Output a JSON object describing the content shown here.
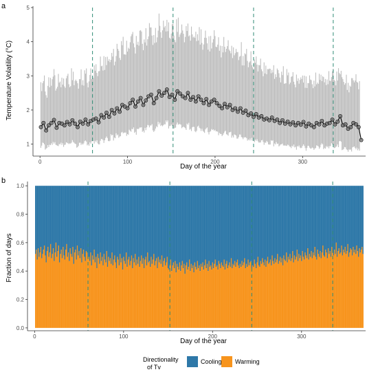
{
  "chart_data": [
    {
      "type": "line",
      "panel_tag": "a",
      "xlabel": "Day of the year",
      "ylabel": "Temperature Volatility (°C)",
      "xlim": [
        -8,
        372
      ],
      "ylim": [
        0.65,
        5.0
      ],
      "xticks": [
        0,
        100,
        200,
        300
      ],
      "yticks": [
        1,
        2,
        3,
        4,
        5
      ],
      "grid": false,
      "reference_lines_x": [
        60,
        152,
        244,
        335
      ],
      "colors": {
        "range": "#bdbdbd",
        "line": "#000000",
        "point_fill": "#7f7f7f",
        "reference": "#2e8b74"
      },
      "series": [
        {
          "name": "",
          "x_start": 1,
          "x_step": 3,
          "values": [
            1.5,
            1.62,
            1.4,
            1.55,
            1.62,
            1.71,
            1.48,
            1.62,
            1.6,
            1.55,
            1.65,
            1.58,
            1.7,
            1.6,
            1.5,
            1.66,
            1.6,
            1.72,
            1.58,
            1.68,
            1.72,
            1.75,
            1.64,
            1.85,
            1.78,
            1.92,
            1.8,
            2.0,
            1.9,
            2.05,
            1.95,
            2.15,
            2.1,
            2.05,
            2.2,
            2.3,
            2.1,
            2.25,
            2.35,
            2.15,
            2.28,
            2.4,
            2.45,
            2.2,
            2.35,
            2.55,
            2.42,
            2.5,
            2.6,
            2.38,
            2.45,
            2.3,
            2.55,
            2.48,
            2.4,
            2.35,
            2.5,
            2.3,
            2.38,
            2.25,
            2.4,
            2.3,
            2.2,
            2.32,
            2.15,
            2.25,
            2.3,
            2.2,
            2.12,
            2.05,
            2.18,
            2.08,
            2.15,
            2.0,
            2.05,
            1.95,
            2.05,
            1.92,
            1.98,
            1.85,
            1.9,
            1.8,
            1.88,
            1.78,
            1.82,
            1.72,
            1.75,
            1.7,
            1.78,
            1.68,
            1.72,
            1.62,
            1.7,
            1.6,
            1.66,
            1.58,
            1.64,
            1.55,
            1.62,
            1.57,
            1.65,
            1.52,
            1.6,
            1.55,
            1.5,
            1.62,
            1.58,
            1.68,
            1.55,
            1.6,
            1.62,
            1.72,
            1.58,
            1.66,
            1.82,
            1.55,
            1.58,
            1.45,
            1.5,
            1.62,
            1.58,
            1.5,
            1.12
          ],
          "lower": [
            0.92,
            1.02,
            0.85,
            0.95,
            0.98,
            1.05,
            0.95,
            0.98,
            1.0,
            0.95,
            1.05,
            0.98,
            1.08,
            1.0,
            0.92,
            1.02,
            0.98,
            1.1,
            0.95,
            1.05,
            1.05,
            1.08,
            1.0,
            1.12,
            1.08,
            1.18,
            1.1,
            1.25,
            1.15,
            1.28,
            1.2,
            1.35,
            1.3,
            1.28,
            1.38,
            1.45,
            1.32,
            1.42,
            1.5,
            1.35,
            1.45,
            1.52,
            1.55,
            1.38,
            1.48,
            1.62,
            1.52,
            1.58,
            1.65,
            1.5,
            1.55,
            1.45,
            1.6,
            1.55,
            1.5,
            1.45,
            1.58,
            1.42,
            1.48,
            1.38,
            1.5,
            1.42,
            1.35,
            1.45,
            1.32,
            1.4,
            1.42,
            1.35,
            1.3,
            1.25,
            1.35,
            1.28,
            1.32,
            1.22,
            1.25,
            1.18,
            1.25,
            1.15,
            1.2,
            1.1,
            1.15,
            1.08,
            1.12,
            1.05,
            1.08,
            1.02,
            1.05,
            1.0,
            1.08,
            0.98,
            1.02,
            0.95,
            1.0,
            0.92,
            0.98,
            0.9,
            0.95,
            0.88,
            0.92,
            0.9,
            0.95,
            0.85,
            0.92,
            0.88,
            0.85,
            0.92,
            0.9,
            0.98,
            0.88,
            0.9,
            0.92,
            1.0,
            0.88,
            0.95,
            1.05,
            0.85,
            0.88,
            0.8,
            0.82,
            0.9,
            0.88,
            0.82,
            0.62
          ],
          "upper": [
            2.7,
            2.9,
            2.5,
            2.8,
            2.9,
            3.05,
            2.7,
            2.9,
            2.85,
            2.8,
            2.95,
            2.85,
            3.05,
            2.9,
            2.75,
            3.0,
            2.9,
            3.1,
            2.85,
            3.05,
            3.15,
            3.25,
            3.1,
            3.45,
            3.35,
            3.55,
            3.4,
            3.7,
            3.55,
            3.8,
            3.65,
            3.95,
            3.85,
            3.8,
            4.05,
            4.2,
            3.9,
            4.1,
            4.25,
            4.0,
            4.15,
            4.35,
            4.4,
            4.05,
            4.25,
            4.55,
            4.35,
            4.45,
            4.6,
            4.3,
            4.4,
            4.2,
            4.5,
            4.4,
            4.3,
            4.25,
            4.45,
            4.2,
            4.3,
            4.1,
            4.3,
            4.15,
            4.0,
            4.2,
            3.95,
            4.05,
            4.15,
            4.0,
            3.9,
            3.8,
            3.95,
            3.85,
            3.9,
            3.7,
            3.8,
            3.6,
            3.75,
            3.55,
            3.65,
            3.45,
            3.5,
            3.35,
            3.45,
            3.3,
            3.35,
            3.2,
            3.25,
            3.15,
            3.25,
            3.1,
            3.15,
            3.0,
            3.1,
            2.95,
            3.05,
            2.9,
            3.0,
            2.85,
            2.95,
            2.88,
            3.0,
            2.8,
            2.92,
            2.85,
            2.78,
            2.95,
            2.9,
            3.05,
            2.85,
            2.92,
            2.95,
            3.1,
            2.9,
            3.05,
            3.25,
            2.85,
            2.9,
            2.7,
            2.78,
            2.95,
            2.9,
            2.8,
            2.25
          ]
        }
      ]
    },
    {
      "type": "bar",
      "panel_tag": "b",
      "stacked": true,
      "xlabel": "Day of the year",
      "ylabel": "Fraction of days",
      "xlim": [
        -8,
        372
      ],
      "ylim": [
        -0.02,
        1.03
      ],
      "xticks": [
        0,
        100,
        200,
        300
      ],
      "yticks": [
        0.0,
        0.2,
        0.4,
        0.6,
        0.8,
        1.0
      ],
      "grid": false,
      "reference_lines_x": [
        60,
        152,
        244,
        335
      ],
      "colors": {
        "Cooling": "#2e78a8",
        "Warming": "#f7941d",
        "reference": "#2e8b74"
      },
      "x_start": 1,
      "x_step": 1,
      "warming_values": [
        0.52,
        0.55,
        0.48,
        0.56,
        0.5,
        0.53,
        0.57,
        0.49,
        0.52,
        0.55,
        0.58,
        0.51,
        0.46,
        0.54,
        0.57,
        0.5,
        0.53,
        0.59,
        0.49,
        0.52,
        0.56,
        0.47,
        0.53,
        0.6,
        0.5,
        0.54,
        0.58,
        0.46,
        0.52,
        0.55,
        0.49,
        0.57,
        0.51,
        0.48,
        0.55,
        0.59,
        0.5,
        0.53,
        0.47,
        0.56,
        0.52,
        0.5,
        0.57,
        0.45,
        0.53,
        0.55,
        0.48,
        0.58,
        0.51,
        0.54,
        0.49,
        0.56,
        0.46,
        0.52,
        0.55,
        0.5,
        0.47,
        0.54,
        0.53,
        0.49,
        0.5,
        0.47,
        0.53,
        0.44,
        0.51,
        0.48,
        0.55,
        0.46,
        0.5,
        0.42,
        0.52,
        0.49,
        0.45,
        0.53,
        0.47,
        0.5,
        0.44,
        0.52,
        0.48,
        0.46,
        0.54,
        0.43,
        0.5,
        0.47,
        0.49,
        0.45,
        0.53,
        0.44,
        0.48,
        0.51,
        0.46,
        0.42,
        0.5,
        0.48,
        0.44,
        0.52,
        0.46,
        0.49,
        0.41,
        0.5,
        0.47,
        0.45,
        0.53,
        0.43,
        0.48,
        0.5,
        0.44,
        0.47,
        0.51,
        0.42,
        0.49,
        0.46,
        0.52,
        0.44,
        0.48,
        0.45,
        0.5,
        0.43,
        0.47,
        0.51,
        0.45,
        0.49,
        0.42,
        0.48,
        0.5,
        0.44,
        0.53,
        0.46,
        0.47,
        0.43,
        0.5,
        0.45,
        0.48,
        0.52,
        0.44,
        0.47,
        0.49,
        0.42,
        0.5,
        0.46,
        0.48,
        0.45,
        0.51,
        0.43,
        0.47,
        0.49,
        0.44,
        0.46,
        0.5,
        0.42,
        0.41,
        0.45,
        0.48,
        0.4,
        0.44,
        0.46,
        0.42,
        0.47,
        0.39,
        0.45,
        0.43,
        0.41,
        0.46,
        0.4,
        0.44,
        0.47,
        0.42,
        0.45,
        0.38,
        0.44,
        0.46,
        0.41,
        0.43,
        0.48,
        0.4,
        0.45,
        0.42,
        0.44,
        0.39,
        0.46,
        0.43,
        0.41,
        0.47,
        0.42,
        0.44,
        0.4,
        0.45,
        0.43,
        0.46,
        0.41,
        0.44,
        0.48,
        0.42,
        0.45,
        0.4,
        0.47,
        0.43,
        0.44,
        0.41,
        0.46,
        0.42,
        0.45,
        0.48,
        0.43,
        0.44,
        0.41,
        0.47,
        0.45,
        0.42,
        0.46,
        0.44,
        0.43,
        0.48,
        0.41,
        0.45,
        0.47,
        0.42,
        0.44,
        0.46,
        0.43,
        0.49,
        0.42,
        0.45,
        0.44,
        0.47,
        0.43,
        0.46,
        0.48,
        0.44,
        0.42,
        0.45,
        0.43,
        0.47,
        0.44,
        0.46,
        0.49,
        0.42,
        0.45,
        0.43,
        0.48,
        0.44,
        0.46,
        0.47,
        0.42,
        0.44,
        0.43,
        0.48,
        0.45,
        0.42,
        0.46,
        0.5,
        0.44,
        0.43,
        0.47,
        0.45,
        0.49,
        0.46,
        0.44,
        0.48,
        0.43,
        0.47,
        0.5,
        0.45,
        0.46,
        0.48,
        0.44,
        0.51,
        0.47,
        0.45,
        0.49,
        0.46,
        0.48,
        0.52,
        0.45,
        0.47,
        0.5,
        0.46,
        0.49,
        0.44,
        0.51,
        0.48,
        0.47,
        0.53,
        0.46,
        0.5,
        0.48,
        0.52,
        0.47,
        0.49,
        0.54,
        0.46,
        0.51,
        0.48,
        0.5,
        0.55,
        0.47,
        0.52,
        0.49,
        0.51,
        0.47,
        0.54,
        0.5,
        0.48,
        0.53,
        0.51,
        0.49,
        0.56,
        0.48,
        0.52,
        0.5,
        0.54,
        0.49,
        0.53,
        0.51,
        0.57,
        0.5,
        0.48,
        0.55,
        0.52,
        0.5,
        0.54,
        0.49,
        0.53,
        0.58,
        0.51,
        0.5,
        0.55,
        0.53,
        0.49,
        0.56,
        0.52,
        0.54,
        0.5,
        0.57,
        0.53,
        0.51,
        0.55,
        0.52,
        0.6,
        0.5,
        0.54,
        0.56,
        0.52,
        0.53,
        0.58,
        0.51,
        0.55,
        0.53,
        0.57,
        0.52,
        0.54,
        0.59,
        0.5,
        0.53,
        0.56,
        0.55,
        0.51,
        0.57,
        0.53,
        0.55,
        0.52,
        0.58,
        0.54,
        0.5,
        0.56,
        0.53,
        0.55,
        0.57,
        0.52
      ],
      "legend": {
        "title": "Directionality\nof Tv",
        "entries": [
          "Cooling",
          "Warming"
        ],
        "position": "bottom"
      }
    }
  ]
}
